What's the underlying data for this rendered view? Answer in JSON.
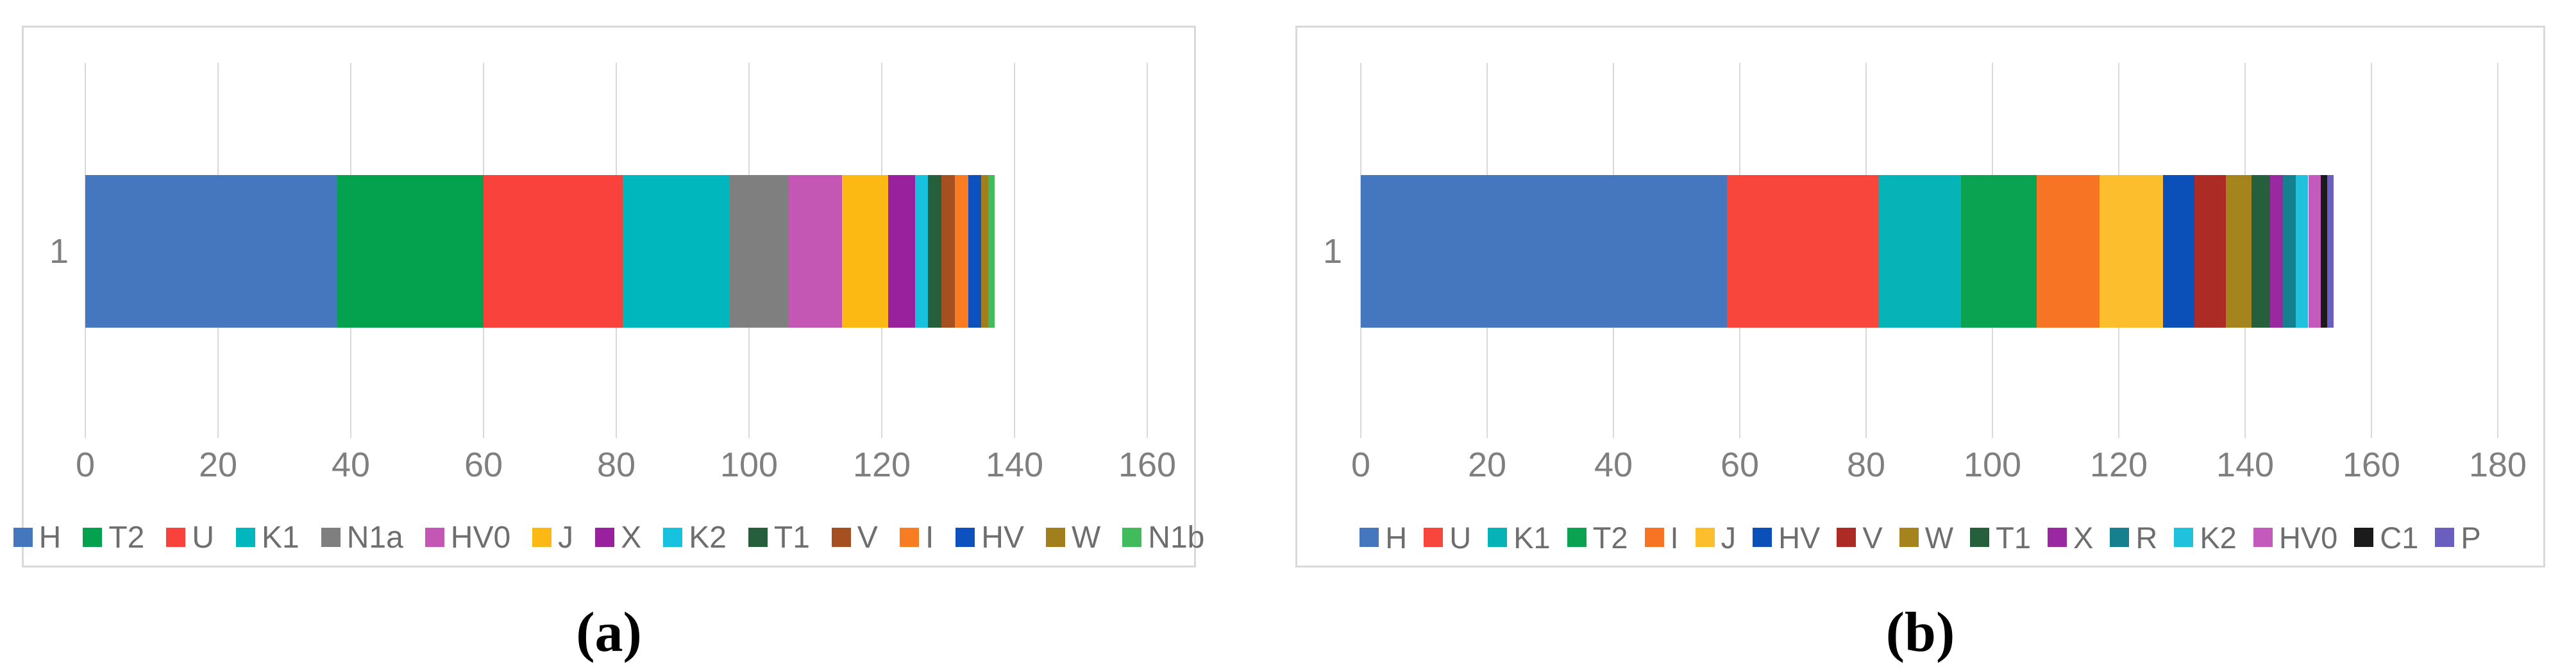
{
  "figure": {
    "background": "#FFFFFF",
    "panel_border_color": "#D9D9D9",
    "gridline_color": "#D9D9D9",
    "axis_text_color": "#7F7F7F",
    "legend_text_color": "#6E6E6E",
    "caption_color": "#000000"
  },
  "captions": {
    "a": "(a)",
    "b": "(b)"
  },
  "chart_data": [
    {
      "id": "a",
      "type": "bar",
      "orientation": "horizontal",
      "stacked": true,
      "title": "",
      "category_label": "1",
      "xlim": [
        0,
        160
      ],
      "x_ticks": [
        0,
        20,
        40,
        60,
        80,
        100,
        120,
        140,
        160
      ],
      "grid": true,
      "legend_position": "bottom",
      "series": [
        {
          "name": "H",
          "value": 38,
          "color": "#4577BE"
        },
        {
          "name": "T2",
          "value": 22,
          "color": "#04A24F"
        },
        {
          "name": "U",
          "value": 21,
          "color": "#F8423B"
        },
        {
          "name": "K1",
          "value": 16,
          "color": "#00B7BE"
        },
        {
          "name": "N1a",
          "value": 9,
          "color": "#7F7F7F"
        },
        {
          "name": "HV0",
          "value": 8,
          "color": "#C457B4"
        },
        {
          "name": "J",
          "value": 7,
          "color": "#FDB913"
        },
        {
          "name": "X",
          "value": 4,
          "color": "#99219E"
        },
        {
          "name": "K2",
          "value": 2,
          "color": "#16C2DE"
        },
        {
          "name": "T1",
          "value": 2,
          "color": "#265F3B"
        },
        {
          "name": "V",
          "value": 2,
          "color": "#A65021"
        },
        {
          "name": "I",
          "value": 2,
          "color": "#F87C22"
        },
        {
          "name": "HV",
          "value": 2,
          "color": "#0D51BE"
        },
        {
          "name": "W",
          "value": 1,
          "color": "#A07F1C"
        },
        {
          "name": "N1b",
          "value": 1,
          "color": "#42BB5C"
        }
      ]
    },
    {
      "id": "b",
      "type": "bar",
      "orientation": "horizontal",
      "stacked": true,
      "title": "",
      "category_label": "1",
      "xlim": [
        0,
        180
      ],
      "x_ticks": [
        0,
        20,
        40,
        60,
        80,
        100,
        120,
        140,
        160,
        180
      ],
      "grid": true,
      "legend_position": "bottom",
      "series": [
        {
          "name": "H",
          "value": 58,
          "color": "#4577BE"
        },
        {
          "name": "U",
          "value": 24,
          "color": "#F8463C"
        },
        {
          "name": "K1",
          "value": 13,
          "color": "#06B4B8"
        },
        {
          "name": "T2",
          "value": 12,
          "color": "#0AA351"
        },
        {
          "name": "I",
          "value": 10,
          "color": "#F87425"
        },
        {
          "name": "J",
          "value": 10,
          "color": "#FCBE2D"
        },
        {
          "name": "HV",
          "value": 5,
          "color": "#0B4FB8"
        },
        {
          "name": "V",
          "value": 5,
          "color": "#AC2B24"
        },
        {
          "name": "W",
          "value": 4,
          "color": "#A5831D"
        },
        {
          "name": "T1",
          "value": 3,
          "color": "#265F3B"
        },
        {
          "name": "X",
          "value": 2,
          "color": "#9A28A0"
        },
        {
          "name": "R",
          "value": 2,
          "color": "#17808E"
        },
        {
          "name": "K2",
          "value": 2,
          "color": "#20C1DC"
        },
        {
          "name": "HV0",
          "value": 2,
          "color": "#C45BBC"
        },
        {
          "name": "C1",
          "value": 1,
          "color": "#1B1B1B"
        },
        {
          "name": "P",
          "value": 1,
          "color": "#6A5EC0"
        }
      ]
    }
  ]
}
